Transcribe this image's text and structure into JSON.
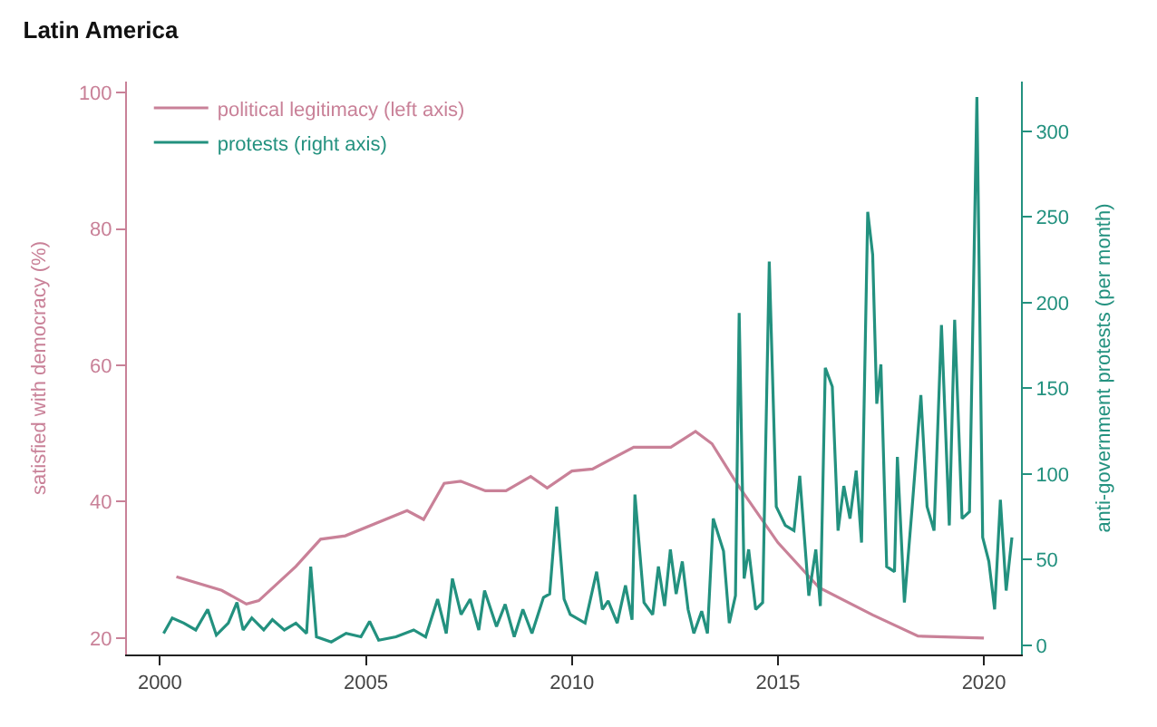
{
  "chart_data": {
    "type": "line",
    "title": "Latin America",
    "ylabel": "satisfied with democracy (%)",
    "y2label": "anti-government protests (per month)",
    "xlim": [
      1999.2,
      2020.9
    ],
    "xticks": [
      2000,
      2005,
      2010,
      2015,
      2020
    ],
    "ylim": [
      17.6,
      101.6
    ],
    "yticks": [
      20,
      40,
      60,
      80,
      100
    ],
    "y2lim": [
      -5.3,
      329
    ],
    "y2ticks": [
      0,
      50,
      100,
      150,
      200,
      250,
      300
    ],
    "legend": "top left",
    "marker": "none",
    "line_style": "solid",
    "series": [
      {
        "name": "political legitimacy (left axis)",
        "color": "#c98198",
        "axis": "y",
        "x": [
          2000.4,
          2001.5,
          2002.1,
          2002.4,
          2003.3,
          2003.9,
          2004.5,
          2006.0,
          2006.4,
          2006.9,
          2007.3,
          2007.9,
          2008.4,
          2009.0,
          2009.4,
          2010.0,
          2010.5,
          2011.5,
          2012.4,
          2013.0,
          2013.4,
          2014.0,
          2015.0,
          2016.0,
          2017.3,
          2018.4,
          2020.0
        ],
        "values": [
          29,
          27,
          25,
          25.5,
          30.5,
          34.5,
          35,
          38.7,
          37.4,
          42.7,
          43,
          41.6,
          41.6,
          43.7,
          42,
          44.5,
          44.8,
          48,
          48,
          50.3,
          48.5,
          42.7,
          34,
          27.4,
          23.4,
          20.3,
          20
        ]
      },
      {
        "name": "protests (right axis)",
        "color": "#23917f",
        "axis": "y2",
        "x": [
          2000.09,
          2000.3,
          2000.58,
          2000.87,
          2001.16,
          2001.37,
          2001.66,
          2001.87,
          2002.02,
          2002.23,
          2002.52,
          2002.73,
          2003.02,
          2003.3,
          2003.56,
          2003.66,
          2003.8,
          2004.16,
          2004.52,
          2004.88,
          2005.09,
          2005.31,
          2005.73,
          2006.16,
          2006.45,
          2006.74,
          2006.95,
          2007.1,
          2007.31,
          2007.53,
          2007.74,
          2007.88,
          2008.17,
          2008.38,
          2008.6,
          2008.81,
          2009.03,
          2009.31,
          2009.46,
          2009.63,
          2009.81,
          2009.96,
          2010.32,
          2010.6,
          2010.74,
          2010.88,
          2011.1,
          2011.3,
          2011.46,
          2011.53,
          2011.75,
          2011.96,
          2012.1,
          2012.25,
          2012.39,
          2012.53,
          2012.68,
          2012.82,
          2012.96,
          2013.15,
          2013.29,
          2013.43,
          2013.68,
          2013.82,
          2013.97,
          2014.06,
          2014.18,
          2014.29,
          2014.46,
          2014.63,
          2014.79,
          2014.96,
          2015.18,
          2015.39,
          2015.53,
          2015.75,
          2015.92,
          2016.03,
          2016.15,
          2016.32,
          2016.46,
          2016.6,
          2016.75,
          2016.9,
          2017.03,
          2017.18,
          2017.3,
          2017.4,
          2017.5,
          2017.64,
          2017.83,
          2017.9,
          2018.07,
          2018.26,
          2018.47,
          2018.62,
          2018.79,
          2018.97,
          2019.16,
          2019.29,
          2019.47,
          2019.65,
          2019.83,
          2019.97,
          2020.12,
          2020.26,
          2020.4,
          2020.54,
          2020.68
        ],
        "values": [
          7,
          16,
          13,
          9,
          21,
          6,
          13,
          25,
          9,
          16,
          9,
          15,
          9,
          13,
          7,
          46,
          5,
          2,
          7,
          5,
          14,
          3,
          5,
          9,
          5,
          27,
          7,
          39,
          18,
          27,
          9,
          32,
          11,
          24,
          5,
          21,
          7,
          28,
          30,
          81,
          27,
          18,
          13,
          43,
          21,
          26,
          13,
          35,
          15,
          88,
          25,
          18,
          46,
          23,
          56,
          30,
          49,
          21,
          7,
          20,
          7,
          74,
          55,
          13,
          29,
          194,
          39,
          56,
          21,
          25,
          224,
          81,
          70,
          67,
          99,
          29,
          56,
          23,
          162,
          151,
          67,
          93,
          74,
          102,
          60,
          253,
          228,
          141,
          164,
          46,
          43,
          110,
          25,
          81,
          146,
          81,
          67,
          187,
          70,
          190,
          74,
          78,
          320,
          63,
          49,
          21,
          85,
          32,
          63
        ]
      }
    ]
  }
}
